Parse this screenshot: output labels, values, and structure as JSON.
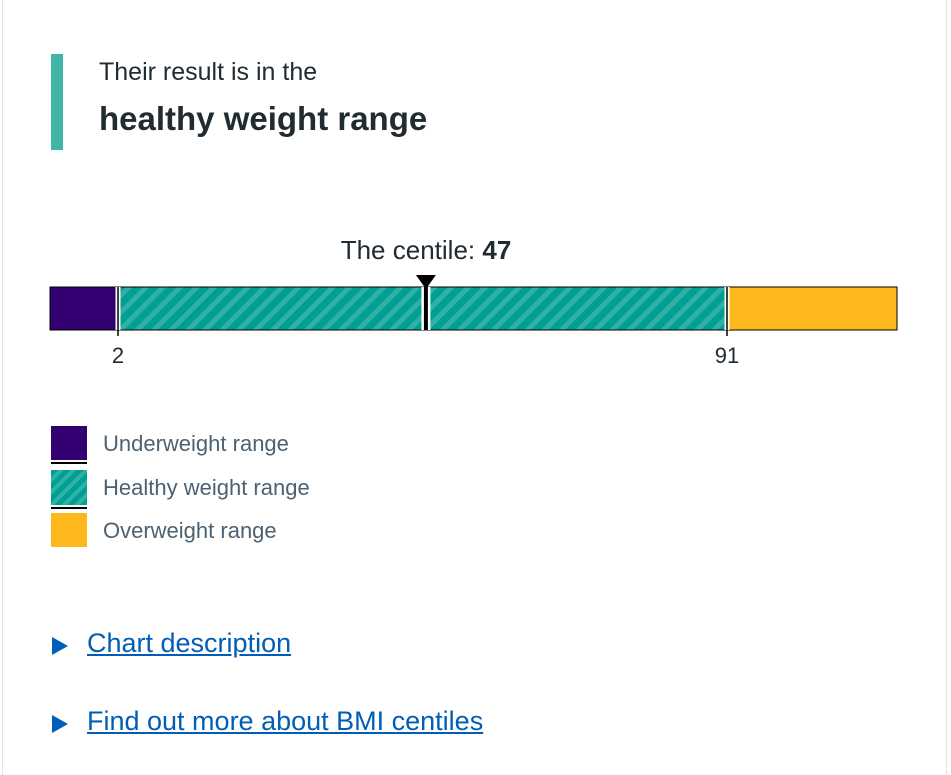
{
  "result": {
    "intro": "Their result is in the",
    "range": "healthy weight range"
  },
  "centile": {
    "label": "The centile:",
    "value": 47
  },
  "thresholds": [
    2,
    91
  ],
  "legend": [
    "Underweight range",
    "Healthy weight range",
    "Overweight range"
  ],
  "links": [
    "Chart description",
    "Find out more about BMI centiles"
  ]
}
